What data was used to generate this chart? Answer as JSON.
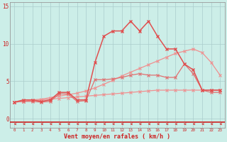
{
  "bg": "#cceee8",
  "grid_color": "#aacccc",
  "xlabel": "Vent moyen/en rafales ( km/h )",
  "yticks": [
    0,
    5,
    10,
    15
  ],
  "xlim": [
    -0.5,
    23.5
  ],
  "ylim": [
    -1.2,
    15.5
  ],
  "x": [
    0,
    1,
    2,
    3,
    4,
    5,
    6,
    7,
    8,
    9,
    10,
    11,
    12,
    13,
    14,
    15,
    16,
    17,
    18,
    19,
    20,
    21,
    22,
    23
  ],
  "y_top": [
    2.2,
    2.5,
    2.5,
    2.3,
    2.5,
    3.5,
    3.5,
    2.5,
    2.5,
    7.5,
    11.0,
    11.7,
    11.7,
    13.0,
    11.7,
    13.0,
    11.0,
    9.3,
    9.3,
    7.3,
    6.5,
    3.8,
    3.8,
    3.8
  ],
  "y_mid": [
    2.2,
    2.3,
    2.3,
    2.2,
    2.3,
    3.3,
    3.3,
    2.3,
    2.4,
    5.2,
    5.2,
    5.3,
    5.5,
    5.8,
    6.0,
    5.8,
    5.8,
    5.5,
    5.5,
    7.3,
    6.0,
    3.8,
    3.5,
    3.5
  ],
  "y_diag_up": [
    2.2,
    2.3,
    2.5,
    2.6,
    2.8,
    3.0,
    3.2,
    3.4,
    3.7,
    4.1,
    4.6,
    5.1,
    5.7,
    6.2,
    6.7,
    7.2,
    7.7,
    8.2,
    8.7,
    9.0,
    9.3,
    8.8,
    7.5,
    5.8
  ],
  "y_diag_low": [
    2.2,
    2.3,
    2.4,
    2.5,
    2.6,
    2.7,
    2.8,
    2.9,
    3.0,
    3.1,
    3.2,
    3.3,
    3.4,
    3.5,
    3.6,
    3.7,
    3.8,
    3.8,
    3.8,
    3.8,
    3.8,
    3.8,
    3.8,
    3.8
  ],
  "color_top": "#e05050",
  "color_mid": "#e07070",
  "color_diag": "#f09090",
  "tick_color": "#cc2222",
  "xlabel_color": "#cc2222"
}
